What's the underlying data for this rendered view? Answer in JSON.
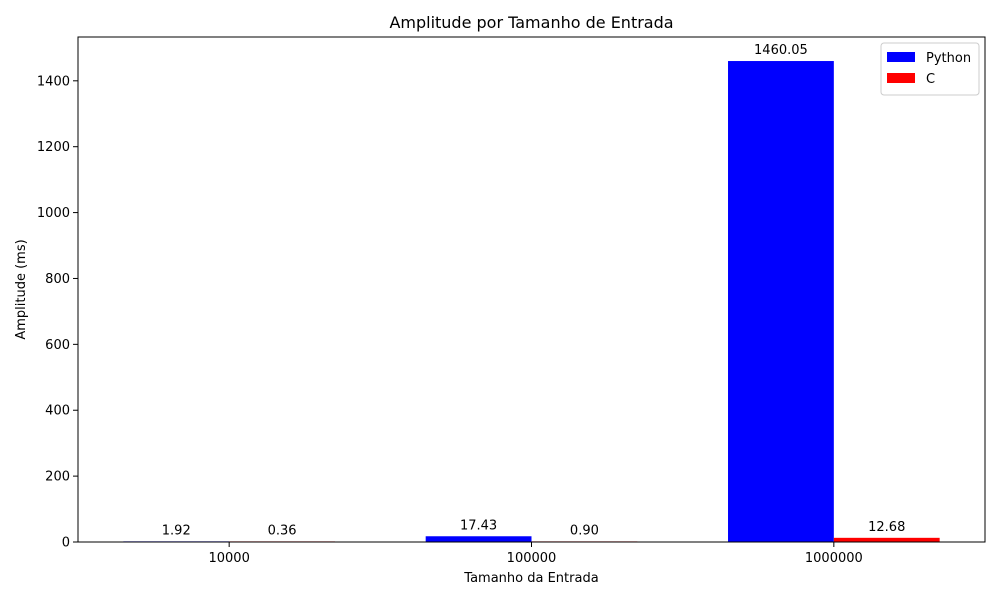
{
  "chart_data": {
    "type": "bar",
    "title": "Amplitude por Tamanho de Entrada",
    "xlabel": "Tamanho da Entrada",
    "ylabel": "Amplitude (ms)",
    "categories": [
      "10000",
      "100000",
      "1000000"
    ],
    "series": [
      {
        "name": "Python",
        "values": [
          1.92,
          17.43,
          1460.05
        ],
        "labels": [
          "1.92",
          "17.43",
          "1460.05"
        ],
        "color": "#0000ff"
      },
      {
        "name": "C",
        "values": [
          0.36,
          0.9,
          12.68
        ],
        "labels": [
          "0.36",
          "0.90",
          "12.68"
        ],
        "color": "#ff0000"
      }
    ],
    "ylim": [
      0,
      1533
    ],
    "yticks": [
      0,
      200,
      400,
      600,
      800,
      1000,
      1200,
      1400
    ],
    "ytick_labels": [
      "0",
      "200",
      "400",
      "600",
      "800",
      "1000",
      "1200",
      "1400"
    ],
    "legend_position": "top-right",
    "grid": false
  }
}
